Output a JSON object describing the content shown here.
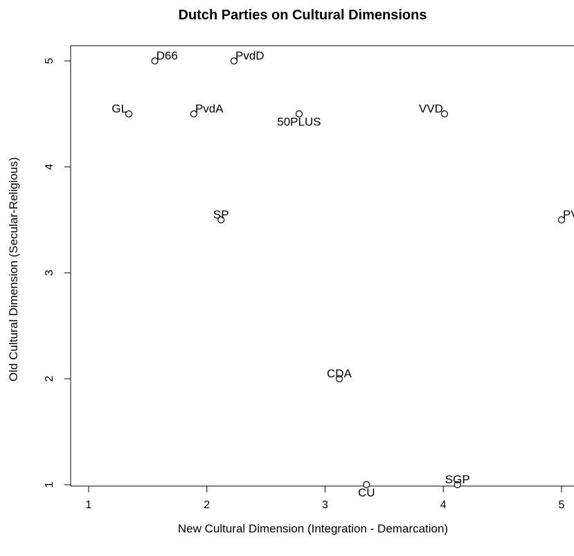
{
  "chart_data": {
    "type": "scatter",
    "title": "Dutch Parties on Cultural Dimensions",
    "xlabel": "New Cultural Dimension (Integration - Demarcation)",
    "ylabel": "Old Cultural Dimension (Secular-Religious)",
    "xlim": [
      1,
      5
    ],
    "ylim": [
      1,
      5
    ],
    "xticks": [
      1,
      2,
      3,
      4,
      5
    ],
    "yticks": [
      1,
      2,
      3,
      4,
      5
    ],
    "grid": false,
    "points": [
      {
        "label": "D66",
        "x": 1.56,
        "y": 5.0,
        "pos": "right"
      },
      {
        "label": "PvdD",
        "x": 2.23,
        "y": 5.0,
        "pos": "right"
      },
      {
        "label": "GL",
        "x": 1.34,
        "y": 4.5,
        "pos": "left"
      },
      {
        "label": "PvdA",
        "x": 1.89,
        "y": 4.5,
        "pos": "right"
      },
      {
        "label": "50PLUS",
        "x": 2.78,
        "y": 4.5,
        "pos": "below"
      },
      {
        "label": "VVD",
        "x": 4.01,
        "y": 4.5,
        "pos": "left"
      },
      {
        "label": "SP",
        "x": 2.12,
        "y": 3.5,
        "pos": "above"
      },
      {
        "label": "PVV",
        "x": 5.0,
        "y": 3.5,
        "pos": "right"
      },
      {
        "label": "CDA",
        "x": 3.12,
        "y": 2.0,
        "pos": "above"
      },
      {
        "label": "CU",
        "x": 3.35,
        "y": 1.0,
        "pos": "below"
      },
      {
        "label": "SGP",
        "x": 4.12,
        "y": 1.0,
        "pos": "above"
      }
    ]
  }
}
